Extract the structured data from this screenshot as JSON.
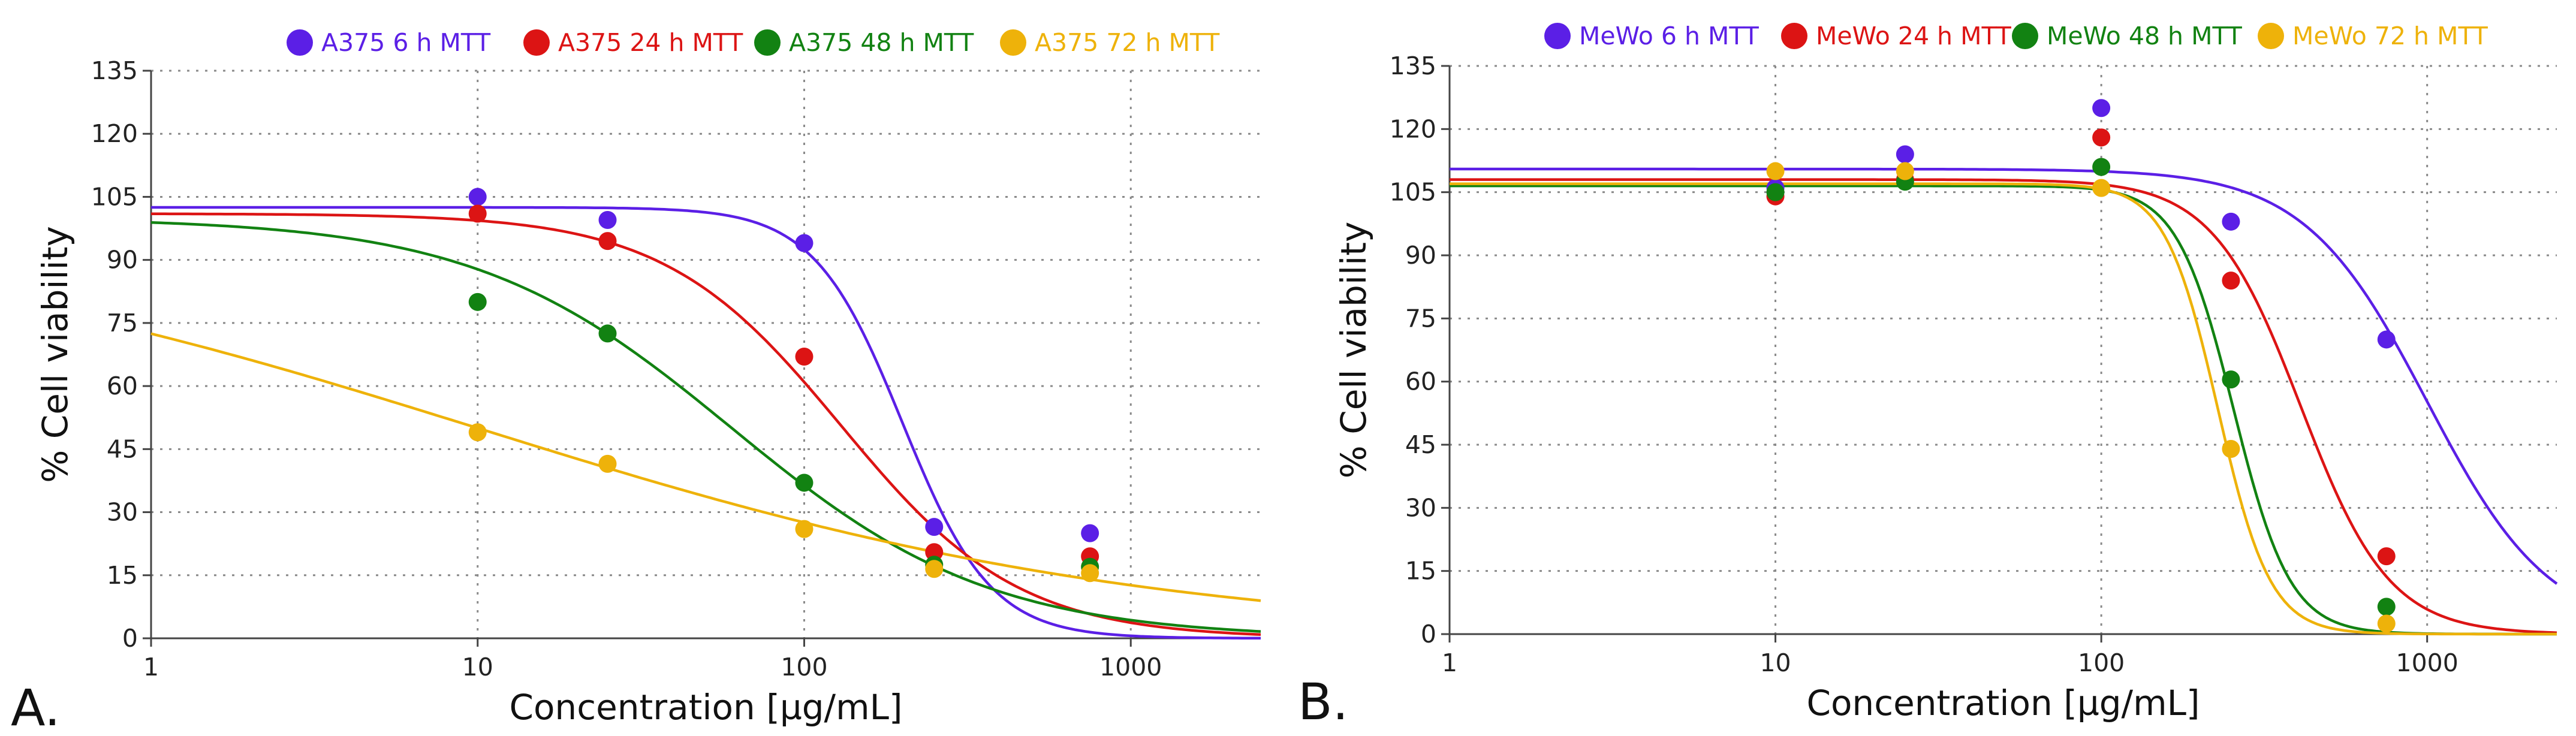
{
  "colors": {
    "6h": "#5b1fe6",
    "24h": "#dc1414",
    "48h": "#128212",
    "72h": "#eeb20a"
  },
  "chart_data": [
    {
      "type": "scatter",
      "panel_label": "A.",
      "title": "",
      "xlabel": "Concentration [µg/mL]",
      "ylabel": "% Cell viability",
      "xscale": "log",
      "xlim": [
        1,
        2500
      ],
      "ylim": [
        0,
        135
      ],
      "grid": true,
      "legend_position": "top",
      "x_ticks": [
        {
          "v": 1,
          "label": "1"
        },
        {
          "v": 10,
          "label": "10"
        },
        {
          "v": 100,
          "label": "100"
        },
        {
          "v": 1000,
          "label": "1000"
        }
      ],
      "y_ticks": [
        {
          "v": 0,
          "label": "0"
        },
        {
          "v": 15,
          "label": "15"
        },
        {
          "v": 30,
          "label": "30"
        },
        {
          "v": 45,
          "label": "45"
        },
        {
          "v": 60,
          "label": "60"
        },
        {
          "v": 75,
          "label": "75"
        },
        {
          "v": 90,
          "label": "90"
        },
        {
          "v": 105,
          "label": "105"
        },
        {
          "v": 120,
          "label": "120"
        },
        {
          "v": 135,
          "label": "135"
        }
      ],
      "series": [
        {
          "name": "A375 6 h MTT",
          "key": "6h",
          "x": [
            10,
            25,
            100,
            250,
            750
          ],
          "y": [
            105,
            99.5,
            94,
            26.5,
            25
          ],
          "fit": {
            "top": 102.5,
            "bottom": 0,
            "ic50": 200,
            "hill": 3.2
          }
        },
        {
          "name": "A375 24 h MTT",
          "key": "24h",
          "x": [
            10,
            25,
            100,
            250,
            750
          ],
          "y": [
            101,
            94.5,
            67,
            20.5,
            19.5
          ],
          "fit": {
            "top": 101,
            "bottom": 0,
            "ic50": 130,
            "hill": 1.6
          }
        },
        {
          "name": "A375 48 h MTT",
          "key": "48h",
          "x": [
            10,
            25,
            100,
            250,
            750
          ],
          "y": [
            80,
            72.5,
            37,
            17.5,
            17
          ],
          "fit": {
            "top": 100,
            "bottom": 0,
            "ic50": 60,
            "hill": 1.1
          }
        },
        {
          "name": "A375 72 h MTT",
          "key": "72h",
          "x": [
            10,
            25,
            100,
            250,
            750
          ],
          "y": [
            49,
            41.5,
            26,
            16.5,
            15.5
          ],
          "fit": {
            "top": 100,
            "bottom": 0,
            "ic50": 10,
            "hill": 0.42
          }
        }
      ]
    },
    {
      "type": "scatter",
      "panel_label": "B.",
      "title": "",
      "xlabel": "Concentration [µg/mL]",
      "ylabel": "% Cell viability",
      "xscale": "log",
      "xlim": [
        1,
        2500
      ],
      "ylim": [
        0,
        135
      ],
      "grid": true,
      "legend_position": "top",
      "x_ticks": [
        {
          "v": 1,
          "label": "1"
        },
        {
          "v": 10,
          "label": "10"
        },
        {
          "v": 100,
          "label": "100"
        },
        {
          "v": 1000,
          "label": "1000"
        }
      ],
      "y_ticks": [
        {
          "v": 0,
          "label": "0"
        },
        {
          "v": 15,
          "label": "15"
        },
        {
          "v": 30,
          "label": "30"
        },
        {
          "v": 45,
          "label": "45"
        },
        {
          "v": 60,
          "label": "60"
        },
        {
          "v": 75,
          "label": "75"
        },
        {
          "v": 90,
          "label": "90"
        },
        {
          "v": 105,
          "label": "105"
        },
        {
          "v": 120,
          "label": "120"
        },
        {
          "v": 135,
          "label": "135"
        }
      ],
      "series": [
        {
          "name": "MeWo 6 h MTT",
          "key": "6h",
          "x": [
            10,
            25,
            100,
            250,
            750
          ],
          "y": [
            106,
            114,
            125,
            98,
            70
          ],
          "fit": {
            "top": 110.5,
            "bottom": 0,
            "ic50": 1000,
            "hill": 2.3
          }
        },
        {
          "name": "MeWo 24 h MTT",
          "key": "24h",
          "x": [
            10,
            25,
            100,
            250,
            750
          ],
          "y": [
            104,
            108,
            118,
            84,
            18.5
          ],
          "fit": {
            "top": 108,
            "bottom": 0,
            "ic50": 410,
            "hill": 3.2
          }
        },
        {
          "name": "MeWo 48 h MTT",
          "key": "48h",
          "x": [
            10,
            25,
            100,
            250,
            750
          ],
          "y": [
            105,
            107.5,
            111,
            60.5,
            6.5
          ],
          "fit": {
            "top": 106.5,
            "bottom": 0,
            "ic50": 255,
            "hill": 5.0
          }
        },
        {
          "name": "MeWo 72 h MTT",
          "key": "72h",
          "x": [
            10,
            25,
            100,
            250,
            750
          ],
          "y": [
            110,
            110,
            106,
            44,
            2.5
          ],
          "fit": {
            "top": 107,
            "bottom": 0,
            "ic50": 228,
            "hill": 5.4
          }
        }
      ]
    }
  ]
}
